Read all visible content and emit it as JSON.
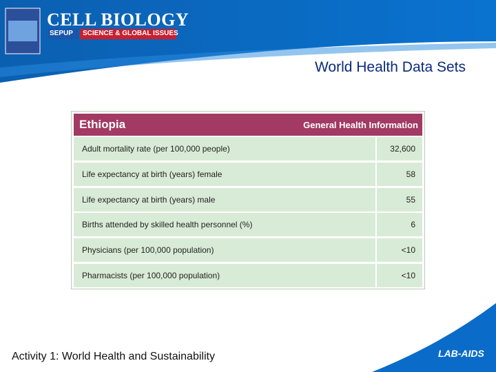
{
  "header": {
    "title": "CELL BIOLOGY",
    "badges": [
      "SEPUP",
      "SCIENCE & GLOBAL ISSUES"
    ]
  },
  "slide_title": "World Health Data Sets",
  "table": {
    "title": "Ethiopia",
    "subtitle": "General Health Information",
    "rows": [
      [
        "Adult mortality rate (per 100,000 people)",
        "32,600"
      ],
      [
        "Life expectancy at birth (years) female",
        "58"
      ],
      [
        "Life expectancy at birth (years) male",
        "55"
      ],
      [
        "Births attended by skilled health personnel (%)",
        "6"
      ],
      [
        "Physicians (per 100,000 population)",
        "<10"
      ],
      [
        "Pharmacists (per 100,000 population)",
        "<10"
      ]
    ]
  },
  "footer": "Activity 1: World Health and Sustainability",
  "logo": "LAB-AIDS"
}
